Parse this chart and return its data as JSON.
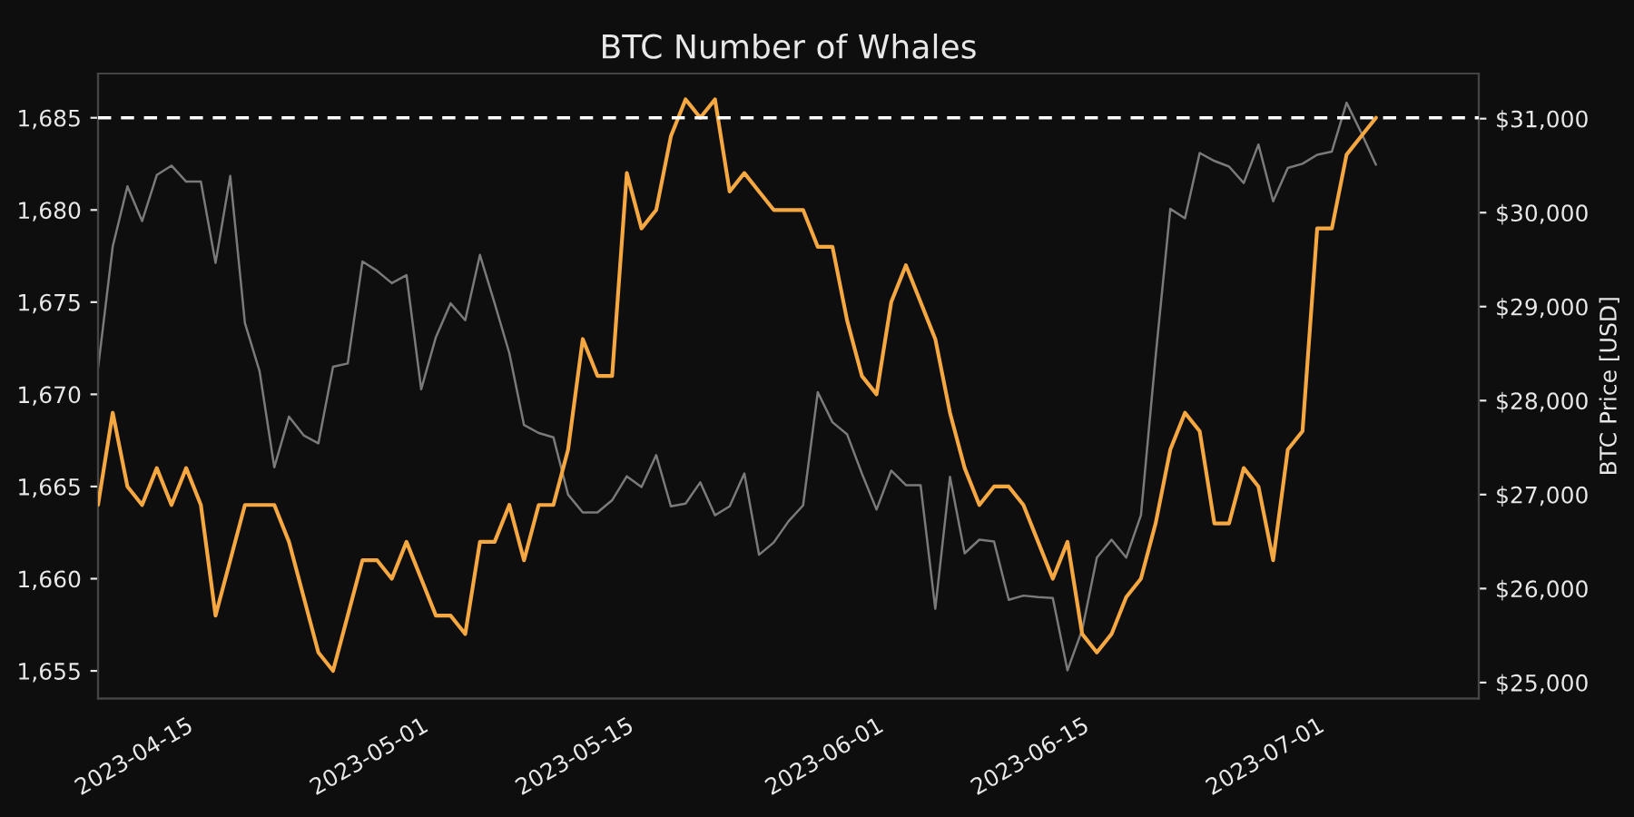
{
  "chart_data": {
    "type": "line",
    "title": "BTC Number of Whales",
    "y2label": "BTC Price [USD]",
    "x": [
      "2023-04-09",
      "2023-04-10",
      "2023-04-11",
      "2023-04-12",
      "2023-04-13",
      "2023-04-14",
      "2023-04-15",
      "2023-04-16",
      "2023-04-17",
      "2023-04-18",
      "2023-04-19",
      "2023-04-20",
      "2023-04-21",
      "2023-04-22",
      "2023-04-23",
      "2023-04-24",
      "2023-04-25",
      "2023-04-26",
      "2023-04-27",
      "2023-04-28",
      "2023-04-29",
      "2023-04-30",
      "2023-05-01",
      "2023-05-02",
      "2023-05-03",
      "2023-05-04",
      "2023-05-05",
      "2023-05-06",
      "2023-05-07",
      "2023-05-08",
      "2023-05-09",
      "2023-05-10",
      "2023-05-11",
      "2023-05-12",
      "2023-05-13",
      "2023-05-14",
      "2023-05-15",
      "2023-05-16",
      "2023-05-17",
      "2023-05-18",
      "2023-05-19",
      "2023-05-20",
      "2023-05-21",
      "2023-05-22",
      "2023-05-23",
      "2023-05-24",
      "2023-05-25",
      "2023-05-26",
      "2023-05-27",
      "2023-05-28",
      "2023-05-29",
      "2023-05-30",
      "2023-05-31",
      "2023-06-01",
      "2023-06-02",
      "2023-06-03",
      "2023-06-04",
      "2023-06-05",
      "2023-06-06",
      "2023-06-07",
      "2023-06-08",
      "2023-06-09",
      "2023-06-10",
      "2023-06-11",
      "2023-06-12",
      "2023-06-13",
      "2023-06-14",
      "2023-06-15",
      "2023-06-16",
      "2023-06-17",
      "2023-06-18",
      "2023-06-19",
      "2023-06-20",
      "2023-06-21",
      "2023-06-22",
      "2023-06-23",
      "2023-06-24",
      "2023-06-25",
      "2023-06-26",
      "2023-06-27",
      "2023-06-28",
      "2023-06-29",
      "2023-06-30",
      "2023-07-01",
      "2023-07-02",
      "2023-07-03",
      "2023-07-04",
      "2023-07-05"
    ],
    "series": [
      {
        "color": "#f5a742",
        "values": [
          1664,
          1669,
          1665,
          1664,
          1666,
          1664,
          1666,
          1664,
          1658,
          1661,
          1664,
          1664,
          1664,
          1662,
          1659,
          1656,
          1655,
          1658,
          1661,
          1661,
          1660,
          1662,
          1660,
          1658,
          1658,
          1657,
          1662,
          1662,
          1664,
          1661,
          1664,
          1664,
          1667,
          1673,
          1671,
          1671,
          1682,
          1679,
          1680,
          1684,
          1686,
          1685,
          1686,
          1681,
          1682,
          1681,
          1680,
          1680,
          1680,
          1678,
          1678,
          1674,
          1671,
          1670,
          1675,
          1677,
          1675,
          1673,
          1669,
          1666,
          1664,
          1665,
          1665,
          1664,
          1662,
          1660,
          1662,
          1657,
          1656,
          1657,
          1659,
          1660,
          1663,
          1667,
          1669,
          1668,
          1663,
          1663,
          1666,
          1665,
          1661,
          1667,
          1668,
          1679,
          1679,
          1683,
          1684,
          1685
        ]
      },
      {
        "color": "#7a7a7a",
        "axis": "y2",
        "values": [
          28345,
          29640,
          30280,
          29910,
          30400,
          30500,
          30330,
          30330,
          29465,
          30390,
          28825,
          28310,
          27290,
          27830,
          27630,
          27545,
          28360,
          28395,
          29480,
          29380,
          29250,
          29335,
          28120,
          28675,
          29035,
          28855,
          29550,
          29035,
          28505,
          27740,
          27655,
          27610,
          27000,
          26810,
          26810,
          26940,
          27195,
          27080,
          27420,
          26875,
          26905,
          27130,
          26780,
          26875,
          27225,
          26360,
          26490,
          26715,
          26885,
          28090,
          27770,
          27640,
          27225,
          26840,
          27255,
          27100,
          27100,
          25785,
          27190,
          26375,
          26520,
          26500,
          25880,
          25925,
          25910,
          25900,
          25130,
          25560,
          26330,
          26520,
          26330,
          26780,
          28470,
          30040,
          29940,
          30635,
          30550,
          30490,
          30315,
          30725,
          30120,
          30475,
          30520,
          30615,
          30650,
          31170,
          30850,
          30510
        ]
      }
    ],
    "xlim": [
      "2023-04-09",
      "2023-07-12"
    ],
    "xticks": [
      {
        "value": "2023-04-15",
        "label": "2023-04-15"
      },
      {
        "value": "2023-05-01",
        "label": "2023-05-01"
      },
      {
        "value": "2023-05-15",
        "label": "2023-05-15"
      },
      {
        "value": "2023-06-01",
        "label": "2023-06-01"
      },
      {
        "value": "2023-06-15",
        "label": "2023-06-15"
      },
      {
        "value": "2023-07-01",
        "label": "2023-07-01"
      }
    ],
    "ylim": [
      1653.5,
      1687.4
    ],
    "yticks": [
      {
        "value": 1655,
        "label": "1,655"
      },
      {
        "value": 1660,
        "label": "1,660"
      },
      {
        "value": 1665,
        "label": "1,665"
      },
      {
        "value": 1670,
        "label": "1,670"
      },
      {
        "value": 1675,
        "label": "1,675"
      },
      {
        "value": 1680,
        "label": "1,680"
      },
      {
        "value": 1685,
        "label": "1,685"
      }
    ],
    "y2lim": [
      24830,
      31480
    ],
    "y2ticks": [
      {
        "value": 25000,
        "label": "$25,000"
      },
      {
        "value": 26000,
        "label": "$26,000"
      },
      {
        "value": 27000,
        "label": "$27,000"
      },
      {
        "value": 28000,
        "label": "$28,000"
      },
      {
        "value": 29000,
        "label": "$29,000"
      },
      {
        "value": 30000,
        "label": "$30,000"
      },
      {
        "value": 31000,
        "label": "$31,000"
      }
    ],
    "ref_lines": [
      {
        "axis": "y",
        "value": 1685,
        "color": "#ffffff",
        "line_style": "dashed"
      }
    ],
    "grid": false,
    "legend": false
  }
}
